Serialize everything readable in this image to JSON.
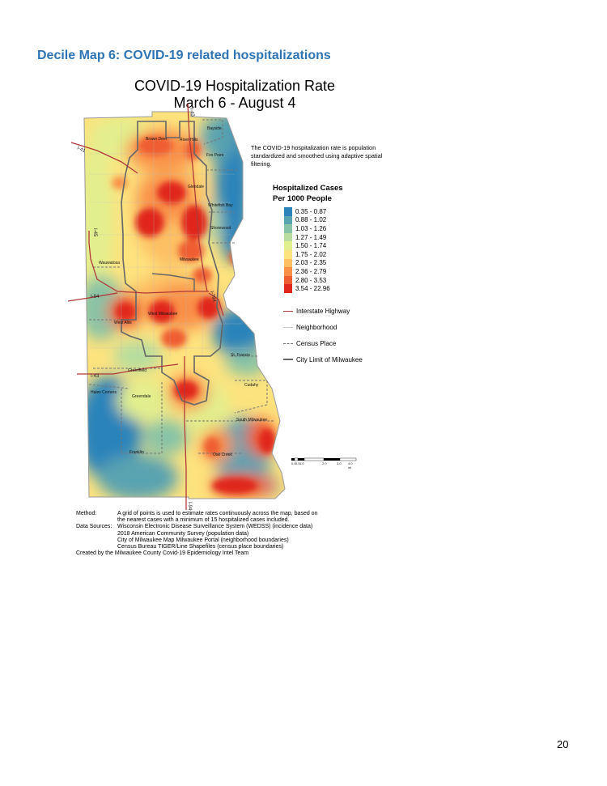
{
  "page": {
    "heading": "Decile Map 6: COVID-19 related hospitalizations",
    "page_number": "20"
  },
  "map": {
    "title_line1": "COVID-19 Hospitalization Rate",
    "title_line2": "March 6 - August 4",
    "description": "The COVID-19 hospitalization rate is population standardized and smoothed using adaptive spatial filtering.",
    "legend_title_line1": "Hospitalized Cases",
    "legend_title_line2": "Per 1000 People",
    "legend": [
      {
        "label": "0.35 - 0.87",
        "color": "#2b83ba"
      },
      {
        "label": "0.88 - 1.02",
        "color": "#5aa3b0"
      },
      {
        "label": "1.03 - 1.26",
        "color": "#88c3a6"
      },
      {
        "label": "1.27 - 1.49",
        "color": "#b8dd9e"
      },
      {
        "label": "1.50 - 1.74",
        "color": "#e2ef8e"
      },
      {
        "label": "1.75 - 2.02",
        "color": "#fde37e"
      },
      {
        "label": "2.03 - 2.35",
        "color": "#fdc063"
      },
      {
        "label": "2.36 - 2.79",
        "color": "#f99048"
      },
      {
        "label": "2.80 - 3.53",
        "color": "#ef5d33"
      },
      {
        "label": "3.54 - 22.96",
        "color": "#e0281d"
      }
    ],
    "reference_legend": [
      {
        "label": "Interstate Highway",
        "color": "#b03a3a",
        "style": "solid"
      },
      {
        "label": "Neighborhood",
        "color": "#c8c8c8",
        "style": "solid"
      },
      {
        "label": "Census Place",
        "color": "#777777",
        "style": "dashed"
      },
      {
        "label": "City Limit of Milwaukee",
        "color": "#666666",
        "style": "solid"
      }
    ],
    "place_labels": {
      "bayside": "Bayside",
      "brown_deer": "Brown Deer",
      "river_hills": "River Hills",
      "fox_point": "Fox Point",
      "glendale": "Glendale",
      "whitefish_bay": "Whitefish Bay",
      "shorewood": "Shorewood",
      "wauwatosa": "Wauwatosa",
      "milwaukee": "Milwaukee",
      "west_milwaukee": "West Milwaukee",
      "west_allis": "West Allis",
      "st_francis": "St. Francis",
      "greenfield": "Greenfield",
      "cudahy": "Cudahy",
      "hales_corners": "Hales Corners",
      "greendale": "Greendale",
      "south_milwaukee": "South Milwaukee",
      "franklin": "Franklin",
      "oak_creek": "Oak Creek"
    },
    "interstate_labels": {
      "i43_north": "I-43",
      "i41": "I-41",
      "i45": "I-45",
      "i794": "I-794",
      "i94": "I-94",
      "i43_south": "I-43",
      "i94_south": "I-94"
    },
    "scale_bar": {
      "labels": [
        "0.0",
        "0.5",
        "1.0",
        "2.0",
        "3.0",
        "4.0 mi"
      ]
    }
  },
  "footnotes": {
    "method_label": "Method:",
    "method_text_1": "A grid of points is used to estimate rates continuously across the map, based on",
    "method_text_2": "the nearest cases with a minimum of 15 hospitalized cases included.",
    "sources_label": "Data Sources:",
    "sources_text_1": "Wisconsin Electronic Disease Surveillance System (WEDSS) (incidence data)",
    "sources_text_2": "2018 American Community Survey (population data)",
    "sources_text_3": "City of Milwaukee Map Milwaukee Portal (neighborhood boundaries)",
    "sources_text_4": "Census Bureau TIGER/Line Shapefiles (census place boundaries)",
    "created_by": "Created by the Milwaukee County Covid-19 Epidemiology Intel Team"
  }
}
